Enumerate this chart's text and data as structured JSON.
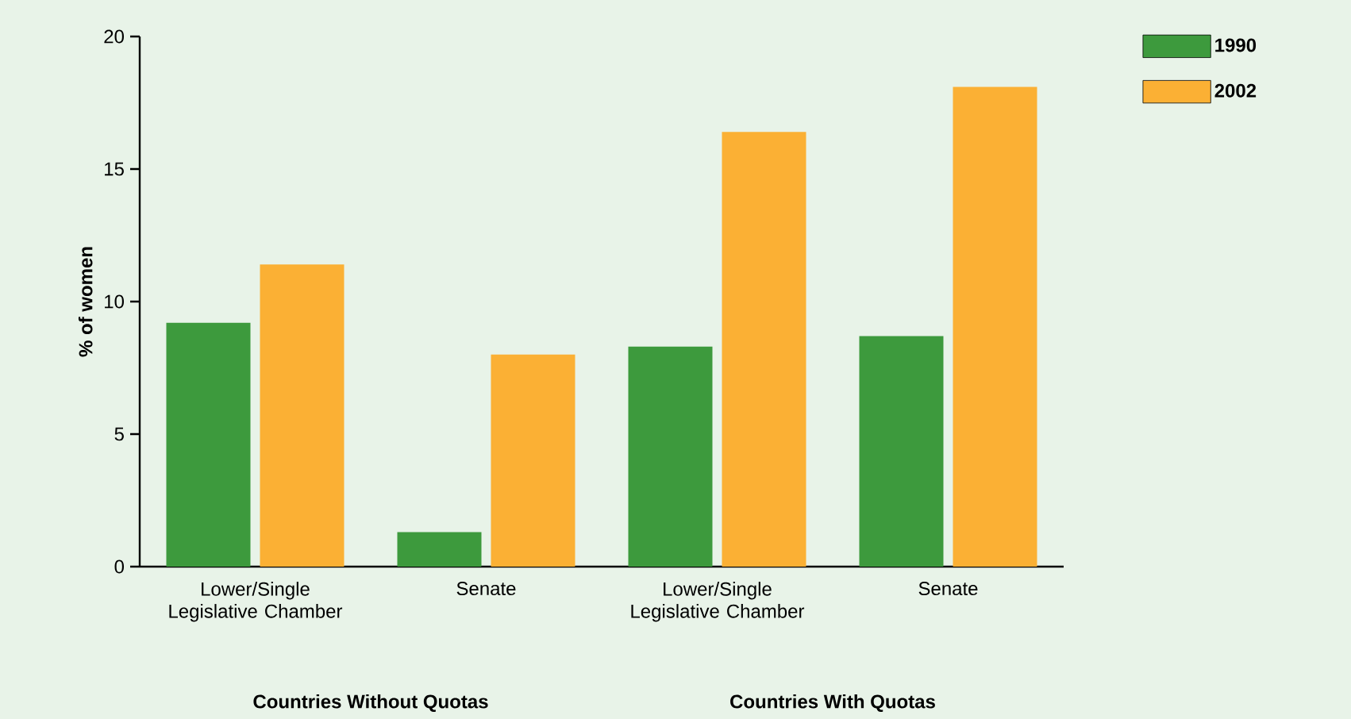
{
  "chart_data": {
    "type": "bar",
    "ylabel": "% of women",
    "categories": [
      "Lower/Single Legislative Chamber",
      "Senate",
      "Lower/Single Legislative Chamber",
      "Senate"
    ],
    "series": [
      {
        "name": "1990",
        "color": "#3d9a3d",
        "values": [
          9.2,
          1.3,
          8.3,
          8.7
        ]
      },
      {
        "name": "2002",
        "color": "#fbb034",
        "values": [
          11.4,
          8.0,
          16.4,
          18.1
        ]
      }
    ],
    "ylim": [
      0,
      20
    ],
    "yticks": [
      0,
      5,
      10,
      15,
      20
    ],
    "legend": "top right",
    "annotations": [
      "Countries Without Quotas",
      "Countries With Quotas"
    ]
  }
}
